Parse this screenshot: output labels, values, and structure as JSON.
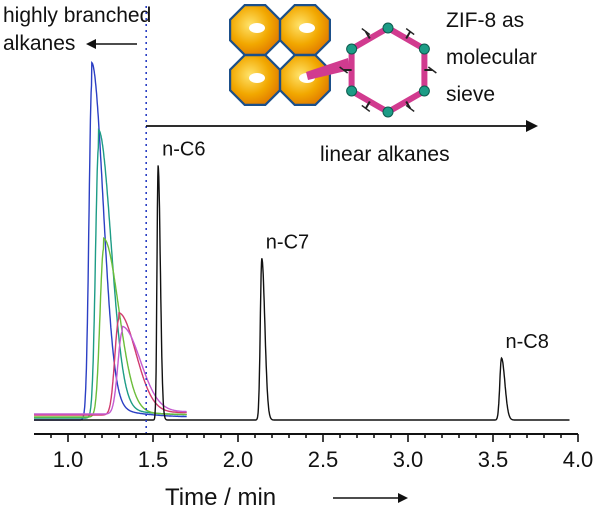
{
  "chart_data": {
    "type": "line",
    "xlabel": "Time / min",
    "ylabel": "",
    "xlim": [
      0.8,
      4.0
    ],
    "xticks": [
      "1.0",
      "1.5",
      "2.0",
      "2.5",
      "3.0",
      "3.5",
      "4.0"
    ],
    "yticks_shown": false,
    "grid": false,
    "divider_x": 1.46,
    "annotations": {
      "branched": [
        "highly branched",
        "alkanes"
      ],
      "linear": "linear alkanes",
      "sieve": [
        "ZIF-8 as",
        "molecular",
        "sieve"
      ]
    },
    "peak_labels": [
      {
        "text": "n-C6",
        "x": 1.53
      },
      {
        "text": "n-C7",
        "x": 2.14
      },
      {
        "text": "n-C8",
        "x": 3.55
      }
    ],
    "series": [
      {
        "color": "#2b3fc4",
        "peaks": [
          {
            "x": 1.14,
            "height": 0.98,
            "width": 0.03
          }
        ]
      },
      {
        "color": "#1d9c86",
        "peaks": [
          {
            "x": 1.18,
            "height": 0.79,
            "width": 0.033
          }
        ]
      },
      {
        "color": "#6bbd3a",
        "peaks": [
          {
            "x": 1.21,
            "height": 0.49,
            "width": 0.04
          }
        ]
      },
      {
        "color": "#d13b6f",
        "peaks": [
          {
            "x": 1.3,
            "height": 0.28,
            "width": 0.045
          }
        ]
      },
      {
        "color": "#c45bd0",
        "peaks": [
          {
            "x": 1.32,
            "height": 0.24,
            "width": 0.048
          }
        ]
      },
      {
        "color": "#111111",
        "peaks": [
          {
            "x": 1.53,
            "height": 0.74,
            "width": 0.012
          },
          {
            "x": 2.14,
            "height": 0.47,
            "width": 0.016
          },
          {
            "x": 3.55,
            "height": 0.18,
            "width": 0.018
          }
        ]
      }
    ],
    "colors": {
      "axis": "#111111",
      "divider": "#2b3fc4",
      "crystal_fill": "#f2a800",
      "crystal_edge": "#1b4f8a",
      "ring": "#d13b8f",
      "ring_atoms": "#1d9c86"
    },
    "icons": [
      "zif8-crystal-cluster-icon",
      "zif8-ring-structure-icon"
    ]
  }
}
